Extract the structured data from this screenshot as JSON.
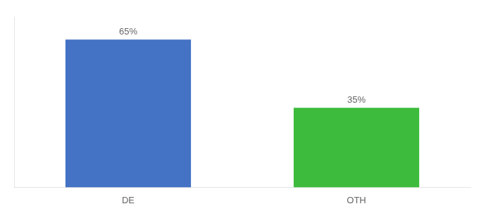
{
  "chart_data": {
    "type": "bar",
    "categories": [
      "DE",
      "OTH"
    ],
    "values": [
      65,
      35
    ],
    "value_labels": [
      "65%",
      "35%"
    ],
    "colors": [
      "#4472c4",
      "#3dbb3d"
    ],
    "ylim": [
      0,
      75
    ],
    "grid": false,
    "data_labels": true,
    "tick_labels": "x"
  }
}
